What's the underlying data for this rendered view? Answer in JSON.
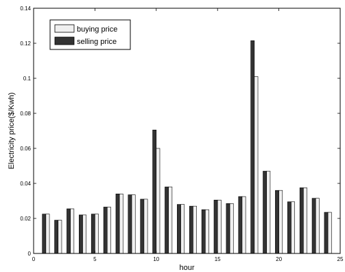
{
  "chart_data": {
    "type": "bar",
    "xlabel": "hour",
    "ylabel": "Electricity price($/Kwh)",
    "xlim": [
      0,
      25
    ],
    "ylim": [
      0,
      0.14
    ],
    "xticks": [
      0,
      5,
      10,
      15,
      20,
      25
    ],
    "yticks": [
      0,
      0.02,
      0.04,
      0.06,
      0.08,
      0.1,
      0.12,
      0.14
    ],
    "grid": false,
    "legend_position": "top-left",
    "x": [
      1,
      2,
      3,
      4,
      5,
      6,
      7,
      8,
      9,
      10,
      11,
      12,
      13,
      14,
      15,
      16,
      17,
      18,
      19,
      20,
      21,
      22,
      23,
      24
    ],
    "series": [
      {
        "name": "buying price",
        "color": "#f0f0f0",
        "values": [
          0.0225,
          0.019,
          0.0255,
          0.022,
          0.0225,
          0.0265,
          0.034,
          0.0335,
          0.031,
          0.06,
          0.038,
          0.028,
          0.027,
          0.025,
          0.0305,
          0.0285,
          0.0325,
          0.101,
          0.047,
          0.036,
          0.0295,
          0.0375,
          0.0315,
          0.0235
        ]
      },
      {
        "name": "selling price",
        "color": "#333333",
        "values": [
          0.0225,
          0.019,
          0.0255,
          0.022,
          0.0225,
          0.0265,
          0.034,
          0.0335,
          0.031,
          0.0705,
          0.038,
          0.028,
          0.027,
          0.025,
          0.0305,
          0.0285,
          0.0325,
          0.1215,
          0.047,
          0.036,
          0.0295,
          0.0375,
          0.0315,
          0.0235
        ]
      }
    ]
  }
}
